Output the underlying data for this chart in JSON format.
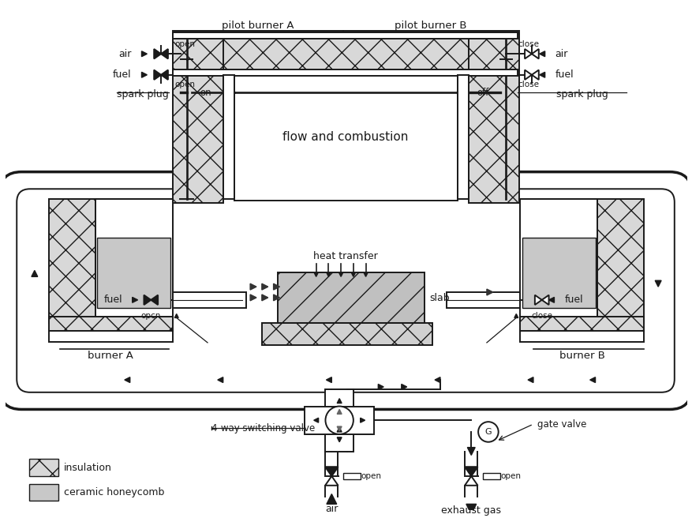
{
  "bg": "white",
  "lc": "#1a1a1a",
  "lw": 1.4,
  "labels": {
    "pilot_A": "pilot burner A",
    "pilot_B": "pilot burner B",
    "flow_comb": "flow and combustion",
    "heat_transfer": "heat transfer",
    "slab": "slab",
    "burner_A": "burner A",
    "burner_B": "burner B",
    "four_way": "4-way switching valve",
    "gate_valve": "gate valve",
    "insulation": "insulation",
    "ceramic": "ceramic honeycomb",
    "air_L": "air",
    "fuel_L_top": "fuel",
    "fuel_L_bot": "fuel",
    "air_R": "air",
    "fuel_R_top": "fuel",
    "fuel_R_bot": "fuel",
    "spark_L": "spark plug",
    "spark_R": "spark plug",
    "on": "on",
    "off": "off",
    "open1": "open",
    "open2": "open",
    "open3": "opcn",
    "close1": "close",
    "close2": "close",
    "close3": "close",
    "air_bot": "air",
    "exhaust": "exhaust gas",
    "open_air": "open",
    "open_exh": "open",
    "G": "G"
  }
}
